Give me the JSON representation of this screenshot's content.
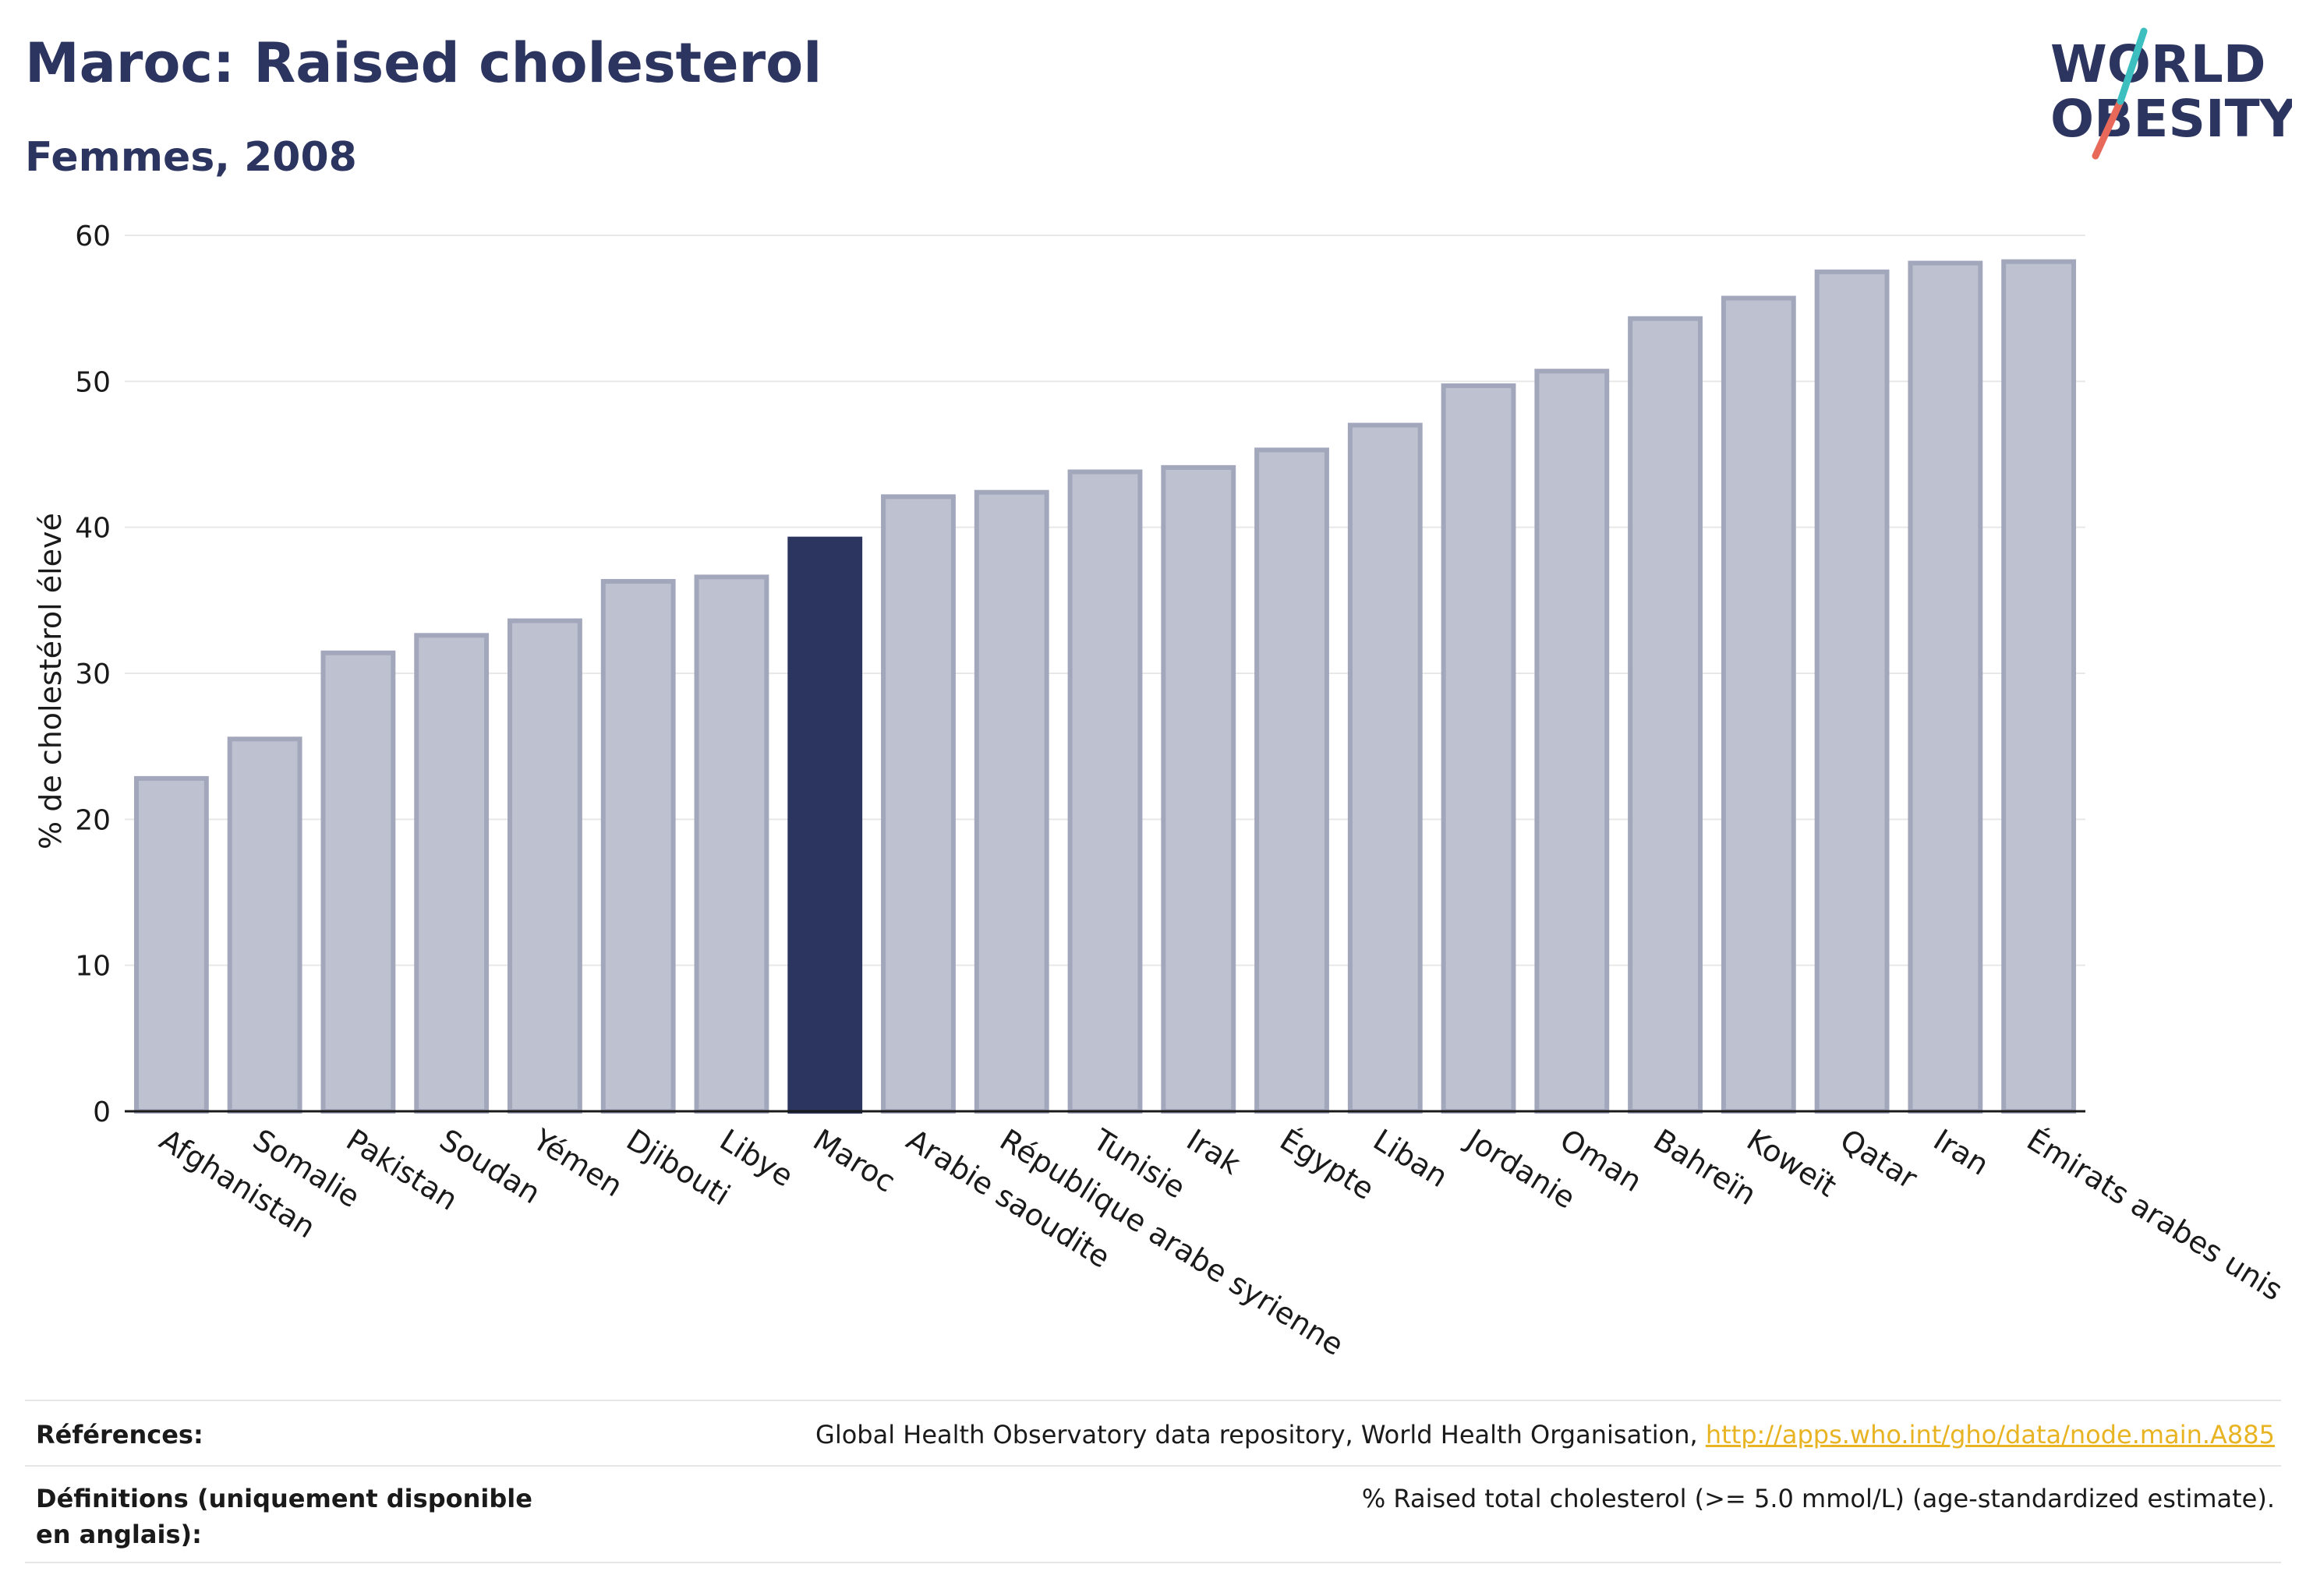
{
  "header": {
    "title": "Maroc: Raised cholesterol",
    "subtitle": "Femmes, 2008"
  },
  "logo": {
    "line1": "WORLD",
    "line2": "OBESITY"
  },
  "chart_data": {
    "type": "bar",
    "ylabel": "% de cholestérol élevé",
    "ylim": [
      0,
      60
    ],
    "yticks": [
      0,
      10,
      20,
      30,
      40,
      50,
      60
    ],
    "grid": true,
    "categories": [
      "Afghanistan",
      "Somalie",
      "Pakistan",
      "Soudan",
      "Yémen",
      "Djibouti",
      "Libye",
      "Maroc",
      "Arabie saoudite",
      "République arabe syrienne",
      "Tunisie",
      "Irak",
      "Égypte",
      "Liban",
      "Jordanie",
      "Oman",
      "Bahreïn",
      "Koweït",
      "Qatar",
      "Iran",
      "Émirats arabes unis"
    ],
    "values": [
      22.8,
      25.5,
      31.4,
      32.6,
      33.6,
      36.3,
      36.6,
      39.2,
      42.1,
      42.4,
      43.8,
      44.1,
      45.3,
      47.0,
      49.7,
      50.7,
      54.3,
      55.7,
      57.5,
      58.1,
      58.2
    ],
    "highlight": "Maroc",
    "colors": {
      "bar": "#bec1cf",
      "bar_edge": "#a2a7bc",
      "highlight": "#2c3560",
      "grid": "#e8e8e8",
      "axis": "#1a1a1a"
    }
  },
  "footer": {
    "references_label": "Références:",
    "references_text": "Global Health Observatory data repository, World Health Organisation, ",
    "references_link": "http://apps.who.int/gho/data/node.main.A885",
    "definitions_label": "Définitions (uniquement disponible en anglais):",
    "definitions_text": "% Raised total cholesterol (>= 5.0 mmol/L) (age-standardized estimate)."
  }
}
